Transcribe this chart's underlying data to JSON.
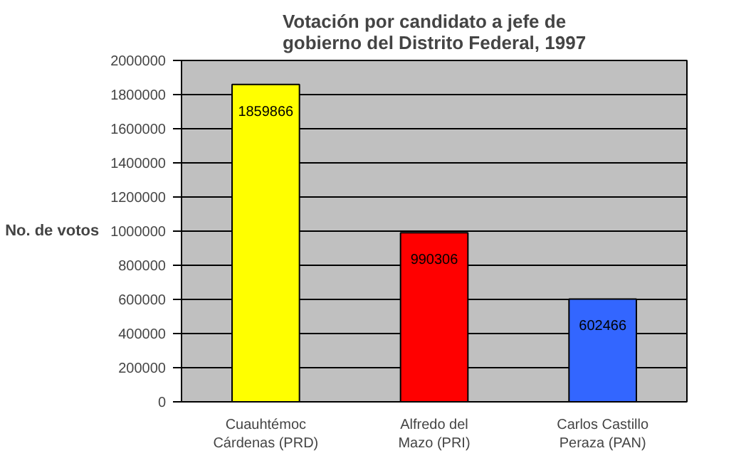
{
  "chart_data": {
    "type": "bar",
    "title": "Votación por candidato a jefe de gobierno del Distrito Federal, 1997",
    "ylabel": "No. de votos",
    "categories": [
      "Cuauhtémoc Cárdenas (PRD)",
      "Alfredo del Mazo (PRI)",
      "Carlos Castillo Peraza (PAN)"
    ],
    "values": [
      1859866,
      990306,
      602466
    ],
    "colors": [
      "#ffff00",
      "#ff0000",
      "#3366ff"
    ],
    "ylim": [
      0,
      2000000
    ],
    "yticks": [
      0,
      200000,
      400000,
      600000,
      800000,
      1000000,
      1200000,
      1400000,
      1600000,
      1800000,
      2000000
    ],
    "grid": "y",
    "data_labels": true
  }
}
